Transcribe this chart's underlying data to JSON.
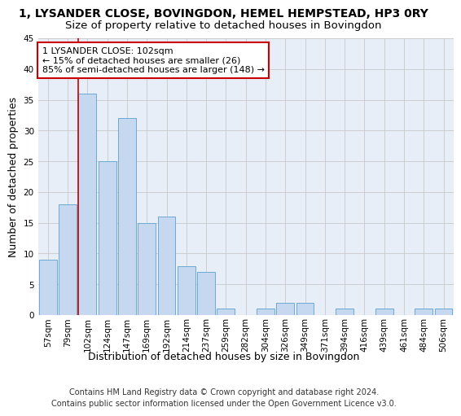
{
  "title": "1, LYSANDER CLOSE, BOVINGDON, HEMEL HEMPSTEAD, HP3 0RY",
  "subtitle": "Size of property relative to detached houses in Bovingdon",
  "xlabel": "Distribution of detached houses by size in Bovingdon",
  "ylabel": "Number of detached properties",
  "categories": [
    "57sqm",
    "79sqm",
    "102sqm",
    "124sqm",
    "147sqm",
    "169sqm",
    "192sqm",
    "214sqm",
    "237sqm",
    "259sqm",
    "282sqm",
    "304sqm",
    "326sqm",
    "349sqm",
    "371sqm",
    "394sqm",
    "416sqm",
    "439sqm",
    "461sqm",
    "484sqm",
    "506sqm"
  ],
  "values": [
    9,
    18,
    36,
    25,
    32,
    15,
    16,
    8,
    7,
    1,
    0,
    1,
    2,
    2,
    0,
    1,
    0,
    1,
    0,
    1,
    1
  ],
  "bar_color": "#c5d8f0",
  "bar_edge_color": "#6aaad4",
  "highlight_index": 2,
  "highlight_line_color": "#cc0000",
  "ylim": [
    0,
    45
  ],
  "yticks": [
    0,
    5,
    10,
    15,
    20,
    25,
    30,
    35,
    40,
    45
  ],
  "annotation_line1": "1 LYSANDER CLOSE: 102sqm",
  "annotation_line2": "← 15% of detached houses are smaller (26)",
  "annotation_line3": "85% of semi-detached houses are larger (148) →",
  "annotation_box_color": "#ffffff",
  "annotation_box_edge": "#cc0000",
  "footer_line1": "Contains HM Land Registry data © Crown copyright and database right 2024.",
  "footer_line2": "Contains public sector information licensed under the Open Government Licence v3.0.",
  "background_color": "#e8eef8",
  "grid_color": "#c8c8c8",
  "title_fontsize": 10,
  "subtitle_fontsize": 9.5,
  "xlabel_fontsize": 9,
  "ylabel_fontsize": 9,
  "tick_fontsize": 7.5,
  "annotation_fontsize": 8,
  "footer_fontsize": 7
}
